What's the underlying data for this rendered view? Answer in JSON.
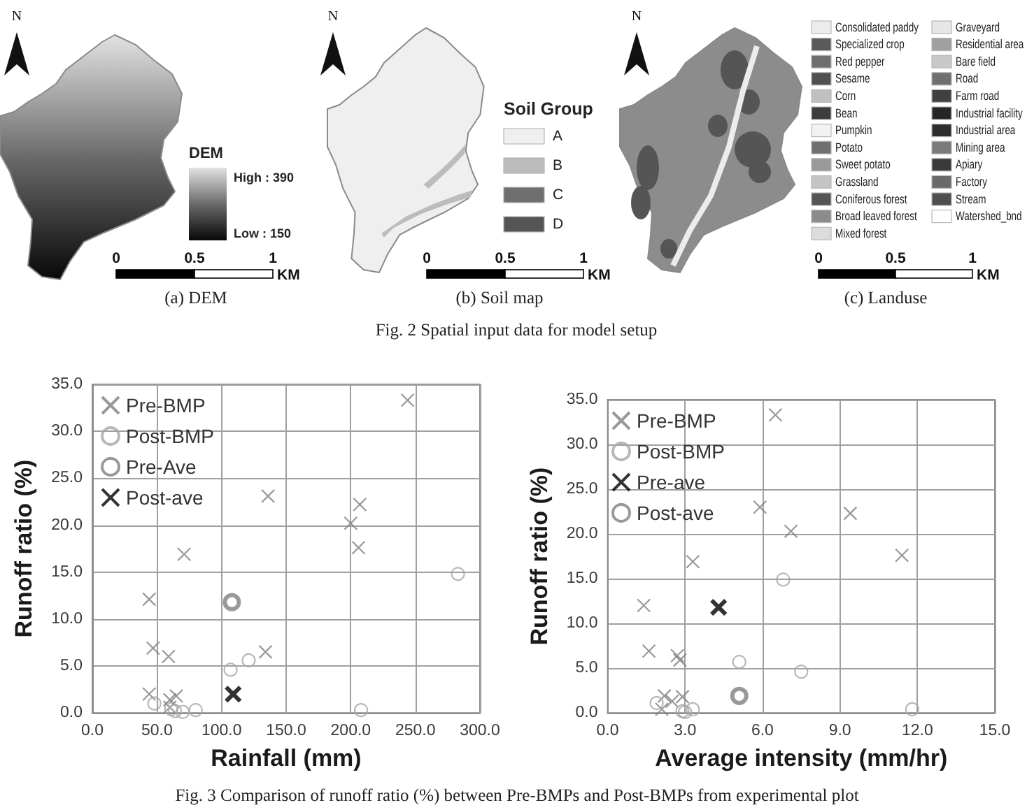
{
  "chart_data": [
    {
      "type": "other",
      "annotations": [
        "N",
        "High : 390",
        "Low : 150",
        "0",
        "0.5",
        "1",
        "(a) DEM"
      ],
      "clabel": "DEM",
      "xlabel": "KM"
    },
    {
      "type": "other",
      "annotations": [
        "N",
        "0",
        "0.5",
        "1",
        "(b) Soil map",
        "Fig. 2 Spatial input data for model setup"
      ],
      "legend_title": "Soil Group",
      "categories": [
        "A",
        "B",
        "C",
        "D"
      ],
      "colors": [
        "#efefef",
        "#bcbcbc",
        "#6f6f6f",
        "#555555"
      ],
      "xlabel": "KM"
    },
    {
      "type": "other",
      "annotations": [
        "N",
        "0",
        "0.5",
        "1",
        "(c) Landuse"
      ],
      "categories": [
        "Consolidated paddy",
        "Specialized crop",
        "Red pepper",
        "Sesame",
        "Corn",
        "Bean",
        "Pumpkin",
        "Potato",
        "Sweet potato",
        "Grassland",
        "Coniferous forest",
        "Broad leaved forest",
        "Mixed forest",
        "Graveyard",
        "Residential area",
        "Bare field",
        "Road",
        "Farm road",
        "Industrial facility",
        "Industrial area",
        "Mining area",
        "Apiary",
        "Factory",
        "Stream",
        "Watershed_bnd"
      ],
      "colors": [
        "#ececec",
        "#5a5a5a",
        "#6e6e6e",
        "#505050",
        "#c0c0c0",
        "#3c3c3c",
        "#f2f2f2",
        "#707070",
        "#9a9a9a",
        "#c4c4c4",
        "#555555",
        "#8c8c8c",
        "#dcdcdc",
        "#e6e6e6",
        "#a0a0a0",
        "#c8c8c8",
        "#707070",
        "#404040",
        "#262626",
        "#2e2e2e",
        "#7a7a7a",
        "#3a3a3a",
        "#6a6a6a",
        "#4e4e4e",
        "#ffffff"
      ],
      "xlabel": "KM"
    },
    {
      "type": "scatter",
      "xlabel": "Rainfall (mm)",
      "ylabel": "Runoff ratio (%)",
      "xlim": [
        0,
        300
      ],
      "xticks": [
        {
          "value": 0,
          "label": "0.0"
        },
        {
          "value": 50,
          "label": "50.0"
        },
        {
          "value": 100,
          "label": "100.0"
        },
        {
          "value": 150,
          "label": "150.0"
        },
        {
          "value": 200,
          "label": "200.0"
        },
        {
          "value": 250,
          "label": "250.0"
        },
        {
          "value": 300,
          "label": "300.0"
        }
      ],
      "ylim": [
        0,
        35
      ],
      "yticks": [
        {
          "value": 0,
          "label": "0.0"
        },
        {
          "value": 5,
          "label": "5.0"
        },
        {
          "value": 10,
          "label": "10.0"
        },
        {
          "value": 15,
          "label": "15.0"
        },
        {
          "value": 20,
          "label": "20.0"
        },
        {
          "value": 25,
          "label": "25.0"
        },
        {
          "value": 30,
          "label": "30.0"
        },
        {
          "value": 35,
          "label": "35.0"
        }
      ],
      "grid": true,
      "legend": "top left",
      "series": [
        {
          "name": "Pre-BMP",
          "color": "#7f7f7f",
          "marker": "cross",
          "x": [
            244,
            136,
            207,
            200,
            206,
            71,
            44,
            47,
            59,
            134,
            44,
            60,
            65,
            60
          ],
          "values": [
            33.3,
            23.1,
            22.2,
            20.2,
            17.6,
            16.9,
            12.1,
            6.9,
            6.0,
            6.5,
            2.0,
            1.4,
            1.8,
            0.6
          ]
        },
        {
          "name": "Post-BMP",
          "color": "#a6a6a6",
          "marker": "circle",
          "x": [
            283,
            121,
            107,
            48,
            61,
            64,
            70,
            80,
            208
          ],
          "values": [
            14.8,
            5.6,
            4.6,
            1.0,
            0.4,
            0.2,
            0.1,
            0.3,
            0.3
          ]
        },
        {
          "name": "Pre-Ave",
          "color": "#7f7f7f",
          "marker": "circle",
          "x": [
            108
          ],
          "values": [
            11.8
          ]
        },
        {
          "name": "Post-ave",
          "color": "#000000",
          "marker": "cross",
          "x": [
            109
          ],
          "values": [
            2.0
          ]
        }
      ],
      "annotations": [
        "Fig. 3 Comparison of runoff ratio (%) between Pre-BMPs and Post-BMPs from experimental plot"
      ]
    },
    {
      "type": "scatter",
      "xlabel": "Average intensity (mm/hr)",
      "ylabel": "Runoff ratio (%)",
      "xlim": [
        0,
        15
      ],
      "xticks": [
        {
          "value": 0,
          "label": "0.0"
        },
        {
          "value": 3,
          "label": "3.0"
        },
        {
          "value": 6,
          "label": "6.0"
        },
        {
          "value": 9,
          "label": "9.0"
        },
        {
          "value": 12,
          "label": "12.0"
        },
        {
          "value": 15,
          "label": "15.0"
        }
      ],
      "ylim": [
        0,
        35
      ],
      "yticks": [
        {
          "value": 0,
          "label": "0.0"
        },
        {
          "value": 5,
          "label": "5.0"
        },
        {
          "value": 10,
          "label": "10.0"
        },
        {
          "value": 15,
          "label": "15.0"
        },
        {
          "value": 20,
          "label": "20.0"
        },
        {
          "value": 25,
          "label": "25.0"
        },
        {
          "value": 30,
          "label": "30.0"
        },
        {
          "value": 35,
          "label": "35.0"
        }
      ],
      "grid": true,
      "legend": "top left",
      "series": [
        {
          "name": "Pre-BMP",
          "color": "#7f7f7f",
          "marker": "cross",
          "x": [
            6.5,
            5.9,
            9.4,
            7.1,
            11.4,
            3.3,
            1.4,
            1.6,
            2.7,
            2.8,
            2.2,
            2.5,
            2.9,
            2.1
          ],
          "values": [
            33.3,
            23.0,
            22.3,
            20.3,
            17.6,
            16.9,
            12.0,
            6.9,
            6.4,
            5.9,
            1.9,
            1.3,
            1.8,
            0.4
          ]
        },
        {
          "name": "Post-BMP",
          "color": "#a6a6a6",
          "marker": "circle",
          "x": [
            6.8,
            5.1,
            7.5,
            1.9,
            2.9,
            3.0,
            3.3,
            11.8
          ],
          "values": [
            14.9,
            5.7,
            4.6,
            1.1,
            0.2,
            0.1,
            0.4,
            0.4
          ]
        },
        {
          "name": "Pre-ave",
          "color": "#000000",
          "marker": "cross",
          "x": [
            4.3
          ],
          "values": [
            11.8
          ]
        },
        {
          "name": "Post-ave",
          "color": "#7f7f7f",
          "marker": "circle",
          "x": [
            5.1
          ],
          "values": [
            1.9
          ]
        }
      ]
    }
  ]
}
